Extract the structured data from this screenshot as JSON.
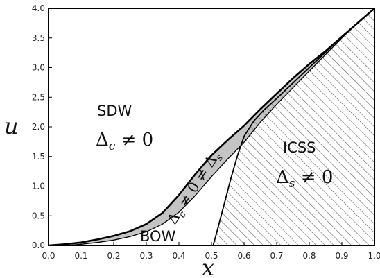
{
  "chart_data": {
    "type": "area",
    "title": "",
    "xlabel": "x",
    "ylabel": "u",
    "xlim": [
      0.0,
      1.0
    ],
    "ylim": [
      0.0,
      4.0
    ],
    "xticks": [
      "0.0",
      "0.1",
      "0.2",
      "0.3",
      "0.4",
      "0.5",
      "0.6",
      "0.7",
      "0.8",
      "0.9",
      "1.0"
    ],
    "yticks": [
      "0.0",
      "0.5",
      "1.0",
      "1.5",
      "2.0",
      "2.5",
      "3.0",
      "3.5",
      "4.0"
    ],
    "grid": false,
    "series": [
      {
        "role": "upper-boundary",
        "x": [
          0.0,
          0.05,
          0.1,
          0.15,
          0.2,
          0.25,
          0.3,
          0.35,
          0.4,
          0.45,
          0.5,
          0.55,
          0.6,
          0.65,
          0.7,
          0.75,
          0.8,
          0.85,
          0.9,
          0.95,
          1.0
        ],
        "y": [
          0.0,
          0.02,
          0.05,
          0.1,
          0.16,
          0.24,
          0.36,
          0.55,
          0.85,
          1.2,
          1.52,
          1.78,
          2.02,
          2.3,
          2.56,
          2.82,
          3.06,
          3.28,
          3.52,
          3.76,
          4.0
        ]
      },
      {
        "role": "lower-boundary",
        "x": [
          0.06,
          0.1,
          0.15,
          0.2,
          0.25,
          0.3,
          0.35,
          0.4,
          0.45,
          0.5,
          0.55,
          0.6,
          0.65,
          0.7,
          0.75,
          0.8,
          0.85,
          0.9,
          0.95,
          1.0
        ],
        "y": [
          0.0,
          0.02,
          0.05,
          0.09,
          0.15,
          0.23,
          0.36,
          0.56,
          0.84,
          1.16,
          1.46,
          1.74,
          2.08,
          2.38,
          2.66,
          2.94,
          3.22,
          3.5,
          3.76,
          4.0
        ]
      },
      {
        "role": "ICSS-boundary",
        "x": [
          0.505,
          0.52,
          0.54,
          0.56,
          0.58,
          0.6,
          0.63,
          0.66,
          0.7,
          0.75,
          0.8,
          0.85,
          0.9,
          0.95,
          1.0
        ],
        "y": [
          0.0,
          0.3,
          0.72,
          1.14,
          1.52,
          1.84,
          2.1,
          2.28,
          2.48,
          2.74,
          3.0,
          3.26,
          3.52,
          3.76,
          4.0
        ]
      }
    ],
    "regions": [
      {
        "name": "SDW",
        "condition": "Δc ≠ 0",
        "fill": "#ffffff"
      },
      {
        "name": "ICSS",
        "condition": "Δs ≠ 0",
        "fill": "hatched"
      },
      {
        "name": "BOW",
        "fill": "#c4c4c4"
      },
      {
        "condition": "Δc ≠ 0 ≠ Δs",
        "fill": "#c4c4c4"
      }
    ]
  },
  "labels": {
    "sdw": "SDW",
    "sdw_delta": "Δ",
    "sdw_sub": "c",
    "sdw_rel": " ≠ 0",
    "icss": "ICSS",
    "icss_delta": "Δ",
    "icss_sub": "s",
    "icss_rel": " ≠ 0",
    "bow": "BOW",
    "mix_d1": "Δ",
    "mix_s1": "c",
    "mix_mid": " ≠ 0 ≠ ",
    "mix_d2": "Δ",
    "mix_s2": "s"
  },
  "colors": {
    "gray_fill": "#c4c4c4",
    "hatch": "#555555",
    "line": "#000000"
  }
}
